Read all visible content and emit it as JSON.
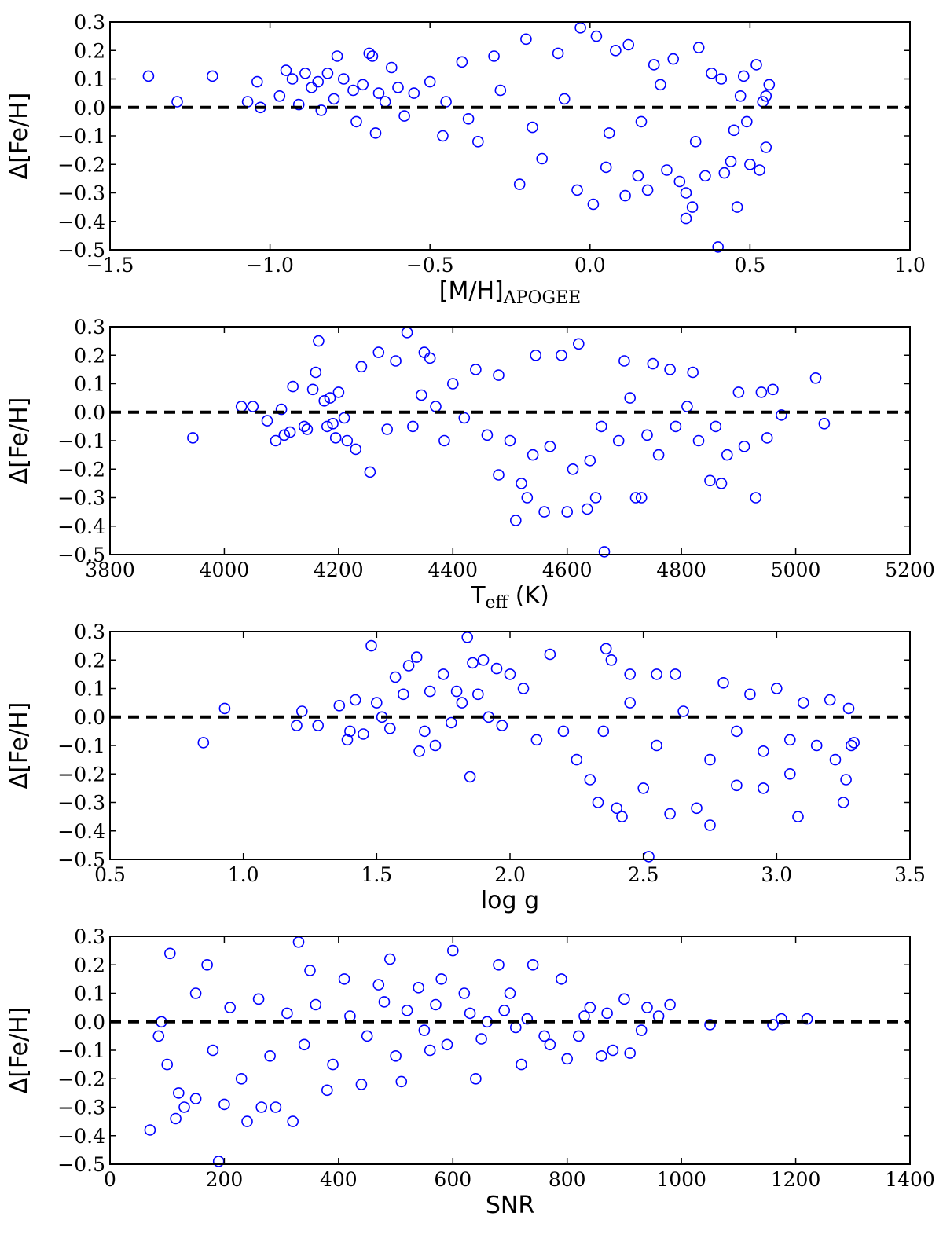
{
  "chart_data": [
    {
      "type": "scatter",
      "title": "",
      "ylabel": "Δ[Fe/H]",
      "xlabel": "[M/H]",
      "xlabel_sub": "APOGEE",
      "xlim": [
        -1.5,
        1.0
      ],
      "ylim": [
        -0.5,
        0.3
      ],
      "xticks": [
        "−1.5",
        "−1.0",
        "−0.5",
        "0.0",
        "0.5",
        "1.0"
      ],
      "yticks": [
        "0.3",
        "0.2",
        "0.1",
        "0.0",
        "−0.1",
        "−0.2",
        "−0.3",
        "−0.4",
        "−0.5"
      ],
      "reference_line_y": 0.0,
      "grid": false,
      "points": [
        [
          -1.38,
          0.11
        ],
        [
          -1.29,
          0.02
        ],
        [
          -1.18,
          0.11
        ],
        [
          -1.07,
          0.02
        ],
        [
          -1.04,
          0.09
        ],
        [
          -1.03,
          0.0
        ],
        [
          -0.97,
          0.04
        ],
        [
          -0.95,
          0.13
        ],
        [
          -0.93,
          0.1
        ],
        [
          -0.91,
          0.01
        ],
        [
          -0.89,
          0.12
        ],
        [
          -0.87,
          0.07
        ],
        [
          -0.85,
          0.09
        ],
        [
          -0.84,
          -0.01
        ],
        [
          -0.82,
          0.12
        ],
        [
          -0.8,
          0.03
        ],
        [
          -0.79,
          0.18
        ],
        [
          -0.77,
          0.1
        ],
        [
          -0.74,
          0.06
        ],
        [
          -0.73,
          -0.05
        ],
        [
          -0.71,
          0.08
        ],
        [
          -0.69,
          0.19
        ],
        [
          -0.68,
          0.18
        ],
        [
          -0.67,
          -0.09
        ],
        [
          -0.66,
          0.05
        ],
        [
          -0.64,
          0.02
        ],
        [
          -0.62,
          0.14
        ],
        [
          -0.6,
          0.07
        ],
        [
          -0.58,
          -0.03
        ],
        [
          -0.22,
          -0.27
        ],
        [
          -0.2,
          0.24
        ],
        [
          -0.03,
          0.28
        ],
        [
          -0.04,
          -0.29
        ],
        [
          0.01,
          -0.34
        ],
        [
          0.02,
          0.25
        ],
        [
          0.11,
          -0.31
        ],
        [
          0.18,
          -0.29
        ],
        [
          0.3,
          -0.39
        ],
        [
          0.32,
          -0.35
        ],
        [
          0.34,
          0.21
        ],
        [
          0.4,
          -0.49
        ],
        [
          0.46,
          -0.35
        ],
        [
          0.48,
          0.11
        ],
        [
          0.5,
          -0.2
        ],
        [
          0.52,
          0.15
        ],
        [
          0.53,
          -0.22
        ],
        [
          0.55,
          -0.14
        ],
        [
          0.56,
          0.08
        ],
        [
          0.55,
          0.04
        ],
        [
          0.54,
          0.02
        ],
        [
          -0.4,
          0.16
        ],
        [
          -0.3,
          0.18
        ],
        [
          -0.1,
          0.19
        ],
        [
          0.08,
          0.2
        ],
        [
          0.12,
          0.22
        ],
        [
          0.2,
          0.15
        ],
        [
          0.28,
          -0.26
        ],
        [
          0.36,
          -0.24
        ],
        [
          0.42,
          -0.23
        ],
        [
          0.44,
          -0.19
        ],
        [
          0.47,
          0.04
        ],
        [
          0.49,
          -0.05
        ],
        [
          0.38,
          0.12
        ],
        [
          0.26,
          0.17
        ],
        [
          -0.5,
          0.09
        ],
        [
          -0.46,
          -0.1
        ],
        [
          -0.35,
          -0.12
        ],
        [
          -0.15,
          -0.18
        ],
        [
          0.05,
          -0.21
        ],
        [
          0.15,
          -0.24
        ],
        [
          0.24,
          -0.22
        ],
        [
          0.3,
          -0.3
        ],
        [
          -0.55,
          0.05
        ],
        [
          -0.45,
          0.02
        ],
        [
          -0.38,
          -0.04
        ],
        [
          -0.28,
          0.06
        ],
        [
          -0.18,
          -0.07
        ],
        [
          -0.08,
          0.03
        ],
        [
          0.06,
          -0.09
        ],
        [
          0.16,
          -0.05
        ],
        [
          0.22,
          0.08
        ],
        [
          0.33,
          -0.12
        ],
        [
          0.41,
          0.1
        ],
        [
          0.45,
          -0.08
        ]
      ]
    },
    {
      "type": "scatter",
      "title": "",
      "ylabel": "Δ[Fe/H]",
      "xlabel": "T",
      "xlabel_sub": "eff",
      "xlabel_suffix": " (K)",
      "xlim": [
        3800,
        5200
      ],
      "ylim": [
        -0.5,
        0.3
      ],
      "xticks": [
        "3800",
        "4000",
        "4200",
        "4400",
        "4600",
        "4800",
        "5000",
        "5200"
      ],
      "yticks": [
        "0.3",
        "0.2",
        "0.1",
        "0.0",
        "−0.1",
        "−0.2",
        "−0.3",
        "−0.4",
        "−0.5"
      ],
      "reference_line_y": 0.0,
      "grid": false,
      "points": [
        [
          3945,
          -0.09
        ],
        [
          4030,
          0.02
        ],
        [
          4050,
          0.02
        ],
        [
          4075,
          -0.03
        ],
        [
          4090,
          -0.1
        ],
        [
          4100,
          0.01
        ],
        [
          4105,
          -0.08
        ],
        [
          4115,
          -0.07
        ],
        [
          4120,
          0.09
        ],
        [
          4140,
          -0.05
        ],
        [
          4145,
          -0.06
        ],
        [
          4155,
          0.08
        ],
        [
          4160,
          0.14
        ],
        [
          4165,
          0.25
        ],
        [
          4175,
          0.04
        ],
        [
          4180,
          -0.05
        ],
        [
          4185,
          0.05
        ],
        [
          4190,
          -0.04
        ],
        [
          4195,
          -0.09
        ],
        [
          4200,
          0.07
        ],
        [
          4210,
          -0.02
        ],
        [
          4215,
          -0.1
        ],
        [
          4230,
          -0.13
        ],
        [
          4240,
          0.16
        ],
        [
          4255,
          -0.21
        ],
        [
          4270,
          0.21
        ],
        [
          4285,
          -0.06
        ],
        [
          4300,
          0.18
        ],
        [
          4320,
          0.28
        ],
        [
          4330,
          -0.05
        ],
        [
          4345,
          0.06
        ],
        [
          4350,
          0.21
        ],
        [
          4360,
          0.19
        ],
        [
          4370,
          0.02
        ],
        [
          4385,
          -0.1
        ],
        [
          4400,
          0.1
        ],
        [
          4420,
          -0.02
        ],
        [
          4440,
          0.15
        ],
        [
          4460,
          -0.08
        ],
        [
          4480,
          0.13
        ],
        [
          4500,
          -0.1
        ],
        [
          4510,
          -0.38
        ],
        [
          4530,
          -0.3
        ],
        [
          4545,
          0.2
        ],
        [
          4560,
          -0.35
        ],
        [
          4590,
          0.2
        ],
        [
          4600,
          -0.35
        ],
        [
          4620,
          0.24
        ],
        [
          4635,
          -0.34
        ],
        [
          4650,
          -0.3
        ],
        [
          4665,
          -0.49
        ],
        [
          4700,
          0.18
        ],
        [
          4720,
          -0.3
        ],
        [
          4730,
          -0.3
        ],
        [
          4750,
          0.17
        ],
        [
          4780,
          0.15
        ],
        [
          4820,
          0.14
        ],
        [
          4850,
          -0.24
        ],
        [
          4870,
          -0.25
        ],
        [
          4900,
          0.07
        ],
        [
          4930,
          -0.3
        ],
        [
          4940,
          0.07
        ],
        [
          4960,
          0.08
        ],
        [
          4975,
          -0.01
        ],
        [
          5035,
          0.12
        ],
        [
          5050,
          -0.04
        ],
        [
          4480,
          -0.22
        ],
        [
          4520,
          -0.25
        ],
        [
          4540,
          -0.15
        ],
        [
          4570,
          -0.12
        ],
        [
          4610,
          -0.2
        ],
        [
          4640,
          -0.17
        ],
        [
          4660,
          -0.05
        ],
        [
          4690,
          -0.1
        ],
        [
          4710,
          0.05
        ],
        [
          4740,
          -0.08
        ],
        [
          4760,
          -0.15
        ],
        [
          4790,
          -0.05
        ],
        [
          4810,
          0.02
        ],
        [
          4830,
          -0.1
        ],
        [
          4860,
          -0.05
        ],
        [
          4880,
          -0.15
        ],
        [
          4910,
          -0.12
        ],
        [
          4950,
          -0.09
        ]
      ]
    },
    {
      "type": "scatter",
      "title": "",
      "ylabel": "Δ[Fe/H]",
      "xlabel": "log g",
      "xlim": [
        0.5,
        3.5
      ],
      "ylim": [
        -0.5,
        0.3
      ],
      "xticks": [
        "0.5",
        "1.0",
        "1.5",
        "2.0",
        "2.5",
        "3.0",
        "3.5"
      ],
      "yticks": [
        "0.3",
        "0.2",
        "0.1",
        "0.0",
        "−0.1",
        "−0.2",
        "−0.3",
        "−0.4",
        "−0.5"
      ],
      "reference_line_y": 0.0,
      "grid": false,
      "points": [
        [
          0.85,
          -0.09
        ],
        [
          0.93,
          0.03
        ],
        [
          1.2,
          -0.03
        ],
        [
          1.22,
          0.02
        ],
        [
          1.28,
          -0.03
        ],
        [
          1.36,
          0.04
        ],
        [
          1.39,
          -0.08
        ],
        [
          1.4,
          -0.05
        ],
        [
          1.42,
          0.06
        ],
        [
          1.45,
          -0.06
        ],
        [
          1.48,
          0.25
        ],
        [
          1.5,
          0.05
        ],
        [
          1.52,
          0.0
        ],
        [
          1.55,
          -0.04
        ],
        [
          1.57,
          0.14
        ],
        [
          1.6,
          0.08
        ],
        [
          1.62,
          0.18
        ],
        [
          1.65,
          0.21
        ],
        [
          1.66,
          -0.12
        ],
        [
          1.68,
          -0.05
        ],
        [
          1.7,
          0.09
        ],
        [
          1.72,
          -0.1
        ],
        [
          1.75,
          0.15
        ],
        [
          1.78,
          -0.02
        ],
        [
          1.8,
          0.09
        ],
        [
          1.82,
          0.05
        ],
        [
          1.84,
          0.28
        ],
        [
          1.85,
          -0.21
        ],
        [
          1.86,
          0.19
        ],
        [
          1.88,
          0.08
        ],
        [
          1.9,
          0.2
        ],
        [
          1.92,
          0.0
        ],
        [
          1.95,
          0.17
        ],
        [
          1.97,
          -0.03
        ],
        [
          2.0,
          0.15
        ],
        [
          2.05,
          0.1
        ],
        [
          2.1,
          -0.08
        ],
        [
          2.15,
          0.22
        ],
        [
          2.2,
          -0.05
        ],
        [
          2.25,
          -0.15
        ],
        [
          2.3,
          -0.22
        ],
        [
          2.33,
          -0.3
        ],
        [
          2.36,
          0.24
        ],
        [
          2.38,
          0.2
        ],
        [
          2.4,
          -0.32
        ],
        [
          2.42,
          -0.35
        ],
        [
          2.45,
          0.15
        ],
        [
          2.5,
          -0.25
        ],
        [
          2.52,
          -0.49
        ],
        [
          2.55,
          0.15
        ],
        [
          2.6,
          -0.34
        ],
        [
          2.62,
          0.15
        ],
        [
          2.7,
          -0.32
        ],
        [
          2.75,
          -0.38
        ],
        [
          2.8,
          0.12
        ],
        [
          2.85,
          -0.24
        ],
        [
          2.9,
          0.08
        ],
        [
          2.95,
          -0.25
        ],
        [
          3.0,
          0.1
        ],
        [
          3.05,
          -0.2
        ],
        [
          3.08,
          -0.35
        ],
        [
          3.1,
          0.05
        ],
        [
          3.15,
          -0.1
        ],
        [
          3.2,
          0.06
        ],
        [
          3.22,
          -0.15
        ],
        [
          3.25,
          -0.3
        ],
        [
          3.26,
          -0.22
        ],
        [
          3.28,
          -0.1
        ],
        [
          3.29,
          -0.09
        ],
        [
          3.27,
          0.03
        ],
        [
          2.35,
          -0.05
        ],
        [
          2.45,
          0.05
        ],
        [
          2.55,
          -0.1
        ],
        [
          2.65,
          0.02
        ],
        [
          2.75,
          -0.15
        ],
        [
          2.85,
          -0.05
        ],
        [
          2.95,
          -0.12
        ],
        [
          3.05,
          -0.08
        ]
      ]
    },
    {
      "type": "scatter",
      "title": "",
      "ylabel": "Δ[Fe/H]",
      "xlabel": "SNR",
      "xlim": [
        0,
        1400
      ],
      "ylim": [
        -0.5,
        0.3
      ],
      "xticks": [
        "0",
        "200",
        "400",
        "600",
        "800",
        "1000",
        "1200",
        "1400"
      ],
      "yticks": [
        "0.3",
        "0.2",
        "0.1",
        "0.0",
        "−0.1",
        "−0.2",
        "−0.3",
        "−0.4",
        "−0.5"
      ],
      "reference_line_y": 0.0,
      "grid": false,
      "points": [
        [
          70,
          -0.38
        ],
        [
          85,
          -0.05
        ],
        [
          90,
          0.0
        ],
        [
          100,
          -0.15
        ],
        [
          105,
          0.24
        ],
        [
          115,
          -0.34
        ],
        [
          120,
          -0.25
        ],
        [
          130,
          -0.3
        ],
        [
          150,
          -0.27
        ],
        [
          170,
          0.2
        ],
        [
          190,
          -0.49
        ],
        [
          200,
          -0.29
        ],
        [
          240,
          -0.35
        ],
        [
          265,
          -0.3
        ],
        [
          290,
          -0.3
        ],
        [
          320,
          -0.35
        ],
        [
          330,
          0.28
        ],
        [
          350,
          0.18
        ],
        [
          380,
          -0.24
        ],
        [
          410,
          0.15
        ],
        [
          440,
          -0.22
        ],
        [
          470,
          0.13
        ],
        [
          490,
          0.22
        ],
        [
          510,
          -0.21
        ],
        [
          540,
          0.12
        ],
        [
          560,
          -0.1
        ],
        [
          580,
          0.15
        ],
        [
          600,
          0.25
        ],
        [
          620,
          0.1
        ],
        [
          640,
          -0.2
        ],
        [
          660,
          0.0
        ],
        [
          680,
          0.2
        ],
        [
          700,
          0.1
        ],
        [
          720,
          -0.15
        ],
        [
          740,
          0.2
        ],
        [
          760,
          -0.05
        ],
        [
          790,
          0.15
        ],
        [
          800,
          -0.13
        ],
        [
          820,
          -0.05
        ],
        [
          840,
          0.05
        ],
        [
          860,
          -0.12
        ],
        [
          880,
          -0.1
        ],
        [
          900,
          0.08
        ],
        [
          910,
          -0.11
        ],
        [
          930,
          -0.03
        ],
        [
          940,
          0.05
        ],
        [
          960,
          0.02
        ],
        [
          980,
          0.06
        ],
        [
          1050,
          -0.01
        ],
        [
          1160,
          -0.01
        ],
        [
          1175,
          0.01
        ],
        [
          1220,
          0.01
        ],
        [
          150,
          0.1
        ],
        [
          180,
          -0.1
        ],
        [
          210,
          0.05
        ],
        [
          230,
          -0.2
        ],
        [
          260,
          0.08
        ],
        [
          280,
          -0.12
        ],
        [
          310,
          0.03
        ],
        [
          340,
          -0.08
        ],
        [
          360,
          0.06
        ],
        [
          390,
          -0.15
        ],
        [
          420,
          0.02
        ],
        [
          450,
          -0.05
        ],
        [
          480,
          0.07
        ],
        [
          500,
          -0.12
        ],
        [
          520,
          0.04
        ],
        [
          550,
          -0.03
        ],
        [
          570,
          0.06
        ],
        [
          590,
          -0.08
        ],
        [
          630,
          0.03
        ],
        [
          650,
          -0.06
        ],
        [
          690,
          0.04
        ],
        [
          710,
          -0.02
        ],
        [
          730,
          0.01
        ],
        [
          770,
          -0.08
        ],
        [
          830,
          0.02
        ],
        [
          870,
          0.03
        ]
      ]
    }
  ]
}
